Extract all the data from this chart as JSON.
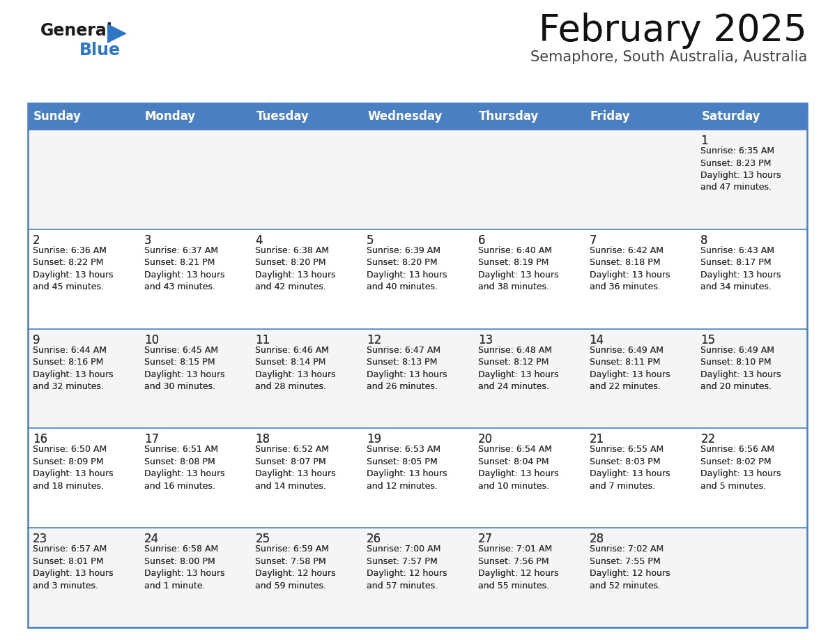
{
  "title": "February 2025",
  "subtitle": "Semaphore, South Australia, Australia",
  "header_color": "#4a7fc1",
  "header_text_color": "#FFFFFF",
  "cell_bg_color": "#FFFFFF",
  "border_color": "#4a7fc1",
  "row_divider_color": "#4a7fc1",
  "text_color": "#333333",
  "days_of_week": [
    "Sunday",
    "Monday",
    "Tuesday",
    "Wednesday",
    "Thursday",
    "Friday",
    "Saturday"
  ],
  "weeks": [
    [
      {
        "day": "",
        "info": ""
      },
      {
        "day": "",
        "info": ""
      },
      {
        "day": "",
        "info": ""
      },
      {
        "day": "",
        "info": ""
      },
      {
        "day": "",
        "info": ""
      },
      {
        "day": "",
        "info": ""
      },
      {
        "day": "1",
        "info": "Sunrise: 6:35 AM\nSunset: 8:23 PM\nDaylight: 13 hours\nand 47 minutes."
      }
    ],
    [
      {
        "day": "2",
        "info": "Sunrise: 6:36 AM\nSunset: 8:22 PM\nDaylight: 13 hours\nand 45 minutes."
      },
      {
        "day": "3",
        "info": "Sunrise: 6:37 AM\nSunset: 8:21 PM\nDaylight: 13 hours\nand 43 minutes."
      },
      {
        "day": "4",
        "info": "Sunrise: 6:38 AM\nSunset: 8:20 PM\nDaylight: 13 hours\nand 42 minutes."
      },
      {
        "day": "5",
        "info": "Sunrise: 6:39 AM\nSunset: 8:20 PM\nDaylight: 13 hours\nand 40 minutes."
      },
      {
        "day": "6",
        "info": "Sunrise: 6:40 AM\nSunset: 8:19 PM\nDaylight: 13 hours\nand 38 minutes."
      },
      {
        "day": "7",
        "info": "Sunrise: 6:42 AM\nSunset: 8:18 PM\nDaylight: 13 hours\nand 36 minutes."
      },
      {
        "day": "8",
        "info": "Sunrise: 6:43 AM\nSunset: 8:17 PM\nDaylight: 13 hours\nand 34 minutes."
      }
    ],
    [
      {
        "day": "9",
        "info": "Sunrise: 6:44 AM\nSunset: 8:16 PM\nDaylight: 13 hours\nand 32 minutes."
      },
      {
        "day": "10",
        "info": "Sunrise: 6:45 AM\nSunset: 8:15 PM\nDaylight: 13 hours\nand 30 minutes."
      },
      {
        "day": "11",
        "info": "Sunrise: 6:46 AM\nSunset: 8:14 PM\nDaylight: 13 hours\nand 28 minutes."
      },
      {
        "day": "12",
        "info": "Sunrise: 6:47 AM\nSunset: 8:13 PM\nDaylight: 13 hours\nand 26 minutes."
      },
      {
        "day": "13",
        "info": "Sunrise: 6:48 AM\nSunset: 8:12 PM\nDaylight: 13 hours\nand 24 minutes."
      },
      {
        "day": "14",
        "info": "Sunrise: 6:49 AM\nSunset: 8:11 PM\nDaylight: 13 hours\nand 22 minutes."
      },
      {
        "day": "15",
        "info": "Sunrise: 6:49 AM\nSunset: 8:10 PM\nDaylight: 13 hours\nand 20 minutes."
      }
    ],
    [
      {
        "day": "16",
        "info": "Sunrise: 6:50 AM\nSunset: 8:09 PM\nDaylight: 13 hours\nand 18 minutes."
      },
      {
        "day": "17",
        "info": "Sunrise: 6:51 AM\nSunset: 8:08 PM\nDaylight: 13 hours\nand 16 minutes."
      },
      {
        "day": "18",
        "info": "Sunrise: 6:52 AM\nSunset: 8:07 PM\nDaylight: 13 hours\nand 14 minutes."
      },
      {
        "day": "19",
        "info": "Sunrise: 6:53 AM\nSunset: 8:05 PM\nDaylight: 13 hours\nand 12 minutes."
      },
      {
        "day": "20",
        "info": "Sunrise: 6:54 AM\nSunset: 8:04 PM\nDaylight: 13 hours\nand 10 minutes."
      },
      {
        "day": "21",
        "info": "Sunrise: 6:55 AM\nSunset: 8:03 PM\nDaylight: 13 hours\nand 7 minutes."
      },
      {
        "day": "22",
        "info": "Sunrise: 6:56 AM\nSunset: 8:02 PM\nDaylight: 13 hours\nand 5 minutes."
      }
    ],
    [
      {
        "day": "23",
        "info": "Sunrise: 6:57 AM\nSunset: 8:01 PM\nDaylight: 13 hours\nand 3 minutes."
      },
      {
        "day": "24",
        "info": "Sunrise: 6:58 AM\nSunset: 8:00 PM\nDaylight: 13 hours\nand 1 minute."
      },
      {
        "day": "25",
        "info": "Sunrise: 6:59 AM\nSunset: 7:58 PM\nDaylight: 12 hours\nand 59 minutes."
      },
      {
        "day": "26",
        "info": "Sunrise: 7:00 AM\nSunset: 7:57 PM\nDaylight: 12 hours\nand 57 minutes."
      },
      {
        "day": "27",
        "info": "Sunrise: 7:01 AM\nSunset: 7:56 PM\nDaylight: 12 hours\nand 55 minutes."
      },
      {
        "day": "28",
        "info": "Sunrise: 7:02 AM\nSunset: 7:55 PM\nDaylight: 12 hours\nand 52 minutes."
      },
      {
        "day": "",
        "info": ""
      }
    ]
  ],
  "logo_general_color": "#1a1a1a",
  "logo_blue_color": "#2e75c3",
  "logo_triangle_color": "#2e75c3",
  "title_fontsize": 38,
  "subtitle_fontsize": 15,
  "header_fontsize": 12,
  "day_num_fontsize": 11,
  "info_fontsize": 9
}
